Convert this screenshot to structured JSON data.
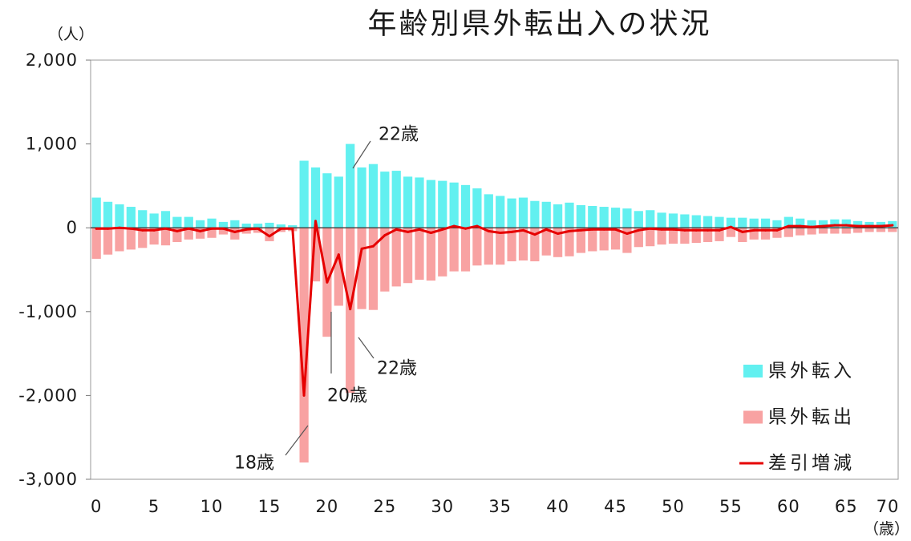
{
  "chart_data": {
    "type": "bar",
    "title": "年齢別県外転出入の状況",
    "ylabel": "（人）",
    "xlabel": "（歳）",
    "ylim": [
      -3000,
      2000
    ],
    "y_ticks": [
      2000,
      1000,
      0,
      -1000,
      -2000,
      -3000
    ],
    "y_tick_labels": [
      "2,000",
      "1,000",
      "0",
      "-1,000",
      "-2,000",
      "-3,000"
    ],
    "x": [
      0,
      1,
      2,
      3,
      4,
      5,
      6,
      7,
      8,
      9,
      10,
      11,
      12,
      13,
      14,
      15,
      16,
      17,
      18,
      19,
      20,
      21,
      22,
      23,
      24,
      25,
      26,
      27,
      28,
      29,
      30,
      31,
      32,
      33,
      34,
      35,
      36,
      37,
      38,
      39,
      40,
      41,
      42,
      43,
      44,
      45,
      46,
      47,
      48,
      49,
      50,
      51,
      52,
      53,
      54,
      55,
      56,
      57,
      58,
      59,
      60,
      61,
      62,
      63,
      64,
      65,
      66,
      67,
      68,
      69
    ],
    "x_ticks": [
      0,
      5,
      10,
      15,
      20,
      25,
      30,
      35,
      40,
      45,
      50,
      55,
      60,
      65,
      70
    ],
    "x_tick_labels": [
      "0",
      "5",
      "10",
      "15",
      "20",
      "25",
      "30",
      "35",
      "40",
      "45",
      "50",
      "55",
      "60",
      "65",
      "70"
    ],
    "grid": false,
    "legend": "bottom-right",
    "series": [
      {
        "name": "県外転入",
        "type": "bar",
        "color": "#62f0f0",
        "values": [
          360,
          310,
          280,
          250,
          210,
          170,
          200,
          130,
          130,
          90,
          110,
          70,
          90,
          50,
          50,
          60,
          40,
          30,
          800,
          720,
          650,
          610,
          1000,
          720,
          760,
          670,
          680,
          610,
          600,
          570,
          560,
          540,
          510,
          470,
          400,
          380,
          350,
          360,
          320,
          310,
          280,
          300,
          270,
          260,
          250,
          240,
          230,
          200,
          210,
          180,
          170,
          160,
          150,
          140,
          130,
          120,
          120,
          110,
          110,
          90,
          130,
          110,
          90,
          90,
          100,
          100,
          80,
          70,
          70,
          80
        ]
      },
      {
        "name": "県外転出",
        "type": "bar",
        "color": "#f8a2a2",
        "values": [
          -370,
          -320,
          -280,
          -260,
          -240,
          -200,
          -210,
          -170,
          -140,
          -130,
          -120,
          -80,
          -140,
          -70,
          -60,
          -160,
          -50,
          -40,
          -2800,
          -640,
          -1300,
          -930,
          -1970,
          -970,
          -980,
          -760,
          -700,
          -660,
          -620,
          -630,
          -580,
          -520,
          -520,
          -450,
          -440,
          -440,
          -400,
          -390,
          -400,
          -330,
          -350,
          -340,
          -300,
          -280,
          -270,
          -260,
          -300,
          -230,
          -220,
          -200,
          -190,
          -190,
          -180,
          -170,
          -160,
          -110,
          -170,
          -140,
          -140,
          -120,
          -110,
          -90,
          -80,
          -70,
          -70,
          -70,
          -60,
          -50,
          -50,
          -50
        ]
      },
      {
        "name": "差引増減",
        "type": "line",
        "color": "#e60000",
        "values": [
          -10,
          -10,
          0,
          -10,
          -30,
          -30,
          -10,
          -40,
          -10,
          -40,
          -10,
          -10,
          -50,
          -20,
          -10,
          -100,
          -10,
          -10,
          -2000,
          80,
          -650,
          -320,
          -970,
          -250,
          -220,
          -90,
          -20,
          -50,
          -20,
          -60,
          -20,
          20,
          -10,
          20,
          -40,
          -60,
          -50,
          -30,
          -80,
          -20,
          -70,
          -40,
          -30,
          -20,
          -20,
          -20,
          -70,
          -30,
          -10,
          -20,
          -20,
          -30,
          -30,
          -30,
          -30,
          10,
          -50,
          -30,
          -30,
          -30,
          20,
          20,
          10,
          20,
          30,
          30,
          20,
          20,
          20,
          30
        ]
      }
    ],
    "annotations": [
      {
        "label": "22歳",
        "x": 22,
        "series": "県外転入"
      },
      {
        "label": "22歳",
        "x": 22,
        "series": "県外転出"
      },
      {
        "label": "20歳",
        "x": 20,
        "series": "県外転出"
      },
      {
        "label": "18歳",
        "x": 18,
        "series": "県外転出"
      }
    ]
  }
}
